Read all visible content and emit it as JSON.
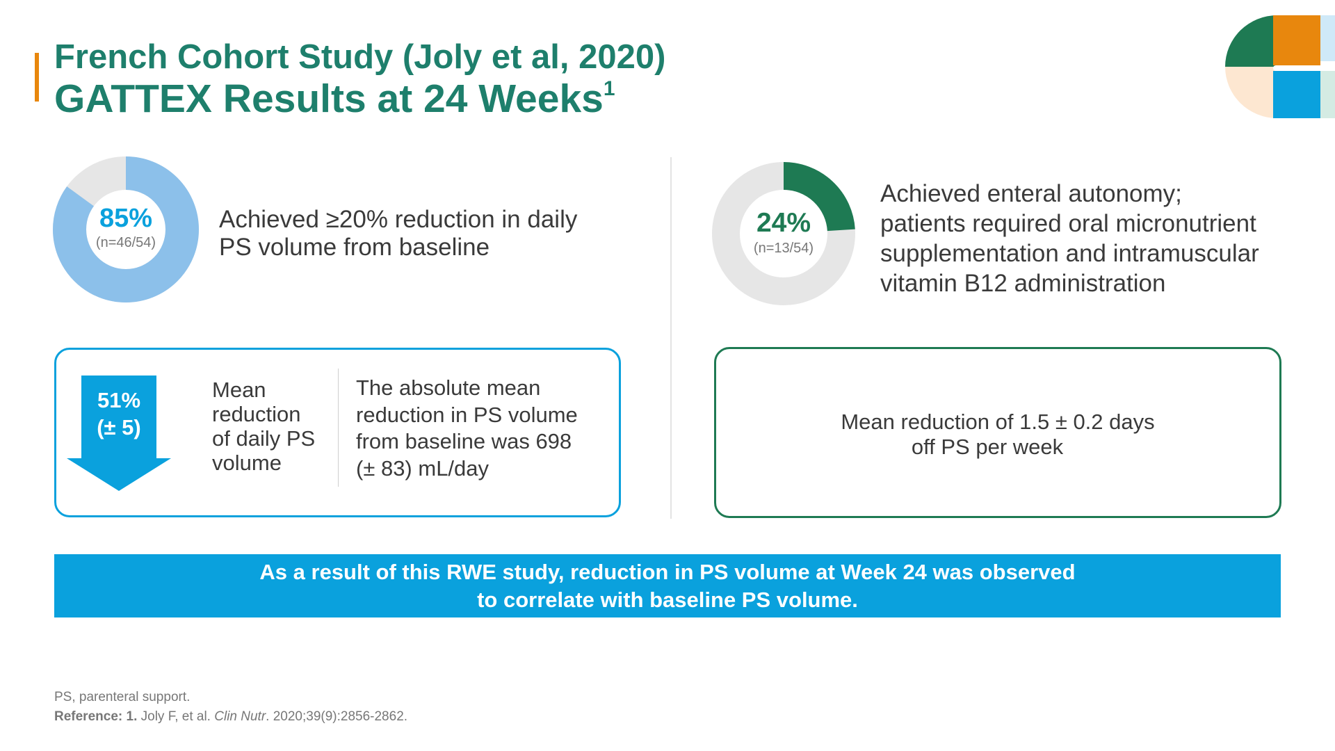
{
  "title": {
    "line1": "French Cohort Study (Joly et al, 2020)",
    "line2": "GATTEX Results at 24 Weeks",
    "line2_superscript": "1"
  },
  "colors": {
    "title": "#1e7f6c",
    "accent_orange": "#e8870d",
    "blue": "#0aa1dd",
    "light_blue": "#8cc0ea",
    "green": "#1e7a53",
    "gray_ring": "#e6e6e6"
  },
  "stat_left": {
    "percent": "85%",
    "fraction": 0.85,
    "n": "(n=46/54)",
    "text_line1": "Achieved ≥20% reduction in daily",
    "text_line2": "PS volume from baseline"
  },
  "stat_right": {
    "percent": "24%",
    "fraction": 0.24,
    "n": "(n=13/54)",
    "text_lines": [
      "Achieved enteral autonomy;",
      "patients required oral micronutrient",
      "supplementation and intramuscular",
      "vitamin B12 administration"
    ]
  },
  "box_left": {
    "arrow_value": "51%",
    "arrow_range": "(± 5)",
    "label_lines": [
      "Mean",
      "reduction",
      "of daily PS",
      "volume"
    ],
    "text_lines": [
      "The absolute mean",
      "reduction in PS volume",
      "from baseline was 698",
      "(± 83) mL/day"
    ]
  },
  "box_right": {
    "text_lines": [
      "Mean reduction of 1.5 ± 0.2 days",
      "off PS per week"
    ]
  },
  "banner": {
    "line1": "As a result of this RWE study, reduction in PS volume at Week 24 was observed",
    "line2": "to correlate with baseline PS volume."
  },
  "footnotes": {
    "abbrev": "PS, parenteral support.",
    "ref_label": "Reference:",
    "ref_num": "1.",
    "ref_authors": "Joly F, et al.",
    "ref_journal": "Clin Nutr",
    "ref_citation": ". 2020;39(9):2856-2862."
  }
}
